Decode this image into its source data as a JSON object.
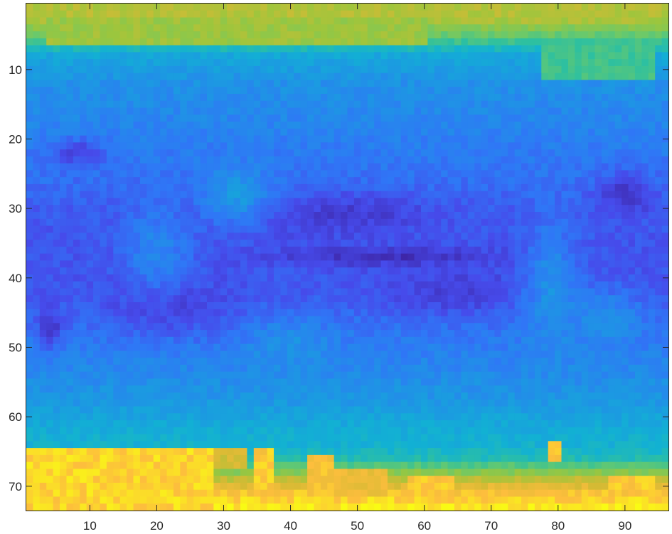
{
  "chart_data": {
    "type": "heatmap",
    "title": "",
    "xlabel": "",
    "ylabel": "",
    "xlim": [
      0.5,
      96.5
    ],
    "ylim": [
      0.5,
      73.5
    ],
    "y_reversed": true,
    "grid": false,
    "colormap": "parula",
    "x_ticks": [
      10,
      20,
      30,
      40,
      50,
      60,
      70,
      80,
      90
    ],
    "y_ticks": [
      10,
      20,
      30,
      40,
      50,
      60,
      70
    ],
    "grid_shape": {
      "rows": 73,
      "cols": 96
    },
    "value_scale": "normalized colormap position (0 = dark blue, 1 = yellow)",
    "base_profile": {
      "rows": [
        1,
        3,
        5,
        8,
        12,
        18,
        25,
        30,
        36,
        42,
        48,
        54,
        58,
        62,
        64,
        66,
        69,
        71,
        73
      ],
      "values": [
        0.78,
        0.74,
        0.62,
        0.38,
        0.3,
        0.26,
        0.21,
        0.16,
        0.14,
        0.15,
        0.22,
        0.28,
        0.33,
        0.4,
        0.42,
        0.48,
        0.78,
        0.92,
        0.98
      ]
    },
    "features": [
      {
        "kind": "box",
        "rows": [
          1,
          2
        ],
        "cols": [
          1,
          96
        ],
        "value": 0.76
      },
      {
        "kind": "box",
        "rows": [
          3,
          6
        ],
        "cols": [
          4,
          60
        ],
        "value": 0.72
      },
      {
        "kind": "box",
        "rows": [
          6,
          11
        ],
        "cols": [
          78,
          94
        ],
        "value": 0.55
      },
      {
        "kind": "blob",
        "row": 31,
        "col": 48,
        "rr": 3,
        "rc": 12,
        "value": 0.07
      },
      {
        "kind": "blob",
        "row": 37,
        "col": 55,
        "rr": 1.2,
        "rc": 16,
        "value": 0.03
      },
      {
        "kind": "blob",
        "row": 42,
        "col": 65,
        "rr": 3,
        "rc": 10,
        "value": 0.08
      },
      {
        "kind": "blob",
        "row": 44,
        "col": 22,
        "rr": 4,
        "rc": 10,
        "value": 0.09
      },
      {
        "kind": "blob",
        "row": 28,
        "col": 90,
        "rr": 3,
        "rc": 4,
        "value": 0.05
      },
      {
        "kind": "blob",
        "row": 47,
        "col": 4,
        "rr": 3,
        "rc": 2,
        "value": 0.06
      },
      {
        "kind": "blob",
        "row": 22,
        "col": 8,
        "rr": 2,
        "rc": 4,
        "value": 0.1
      },
      {
        "kind": "blob",
        "row": 36,
        "col": 20,
        "rr": 6,
        "rc": 5,
        "value": 0.27
      },
      {
        "kind": "blob",
        "row": 28,
        "col": 32,
        "rr": 4,
        "rc": 5,
        "value": 0.33
      },
      {
        "kind": "blob",
        "row": 50,
        "col": 40,
        "rr": 4,
        "rc": 6,
        "value": 0.3
      },
      {
        "kind": "blob",
        "row": 42,
        "col": 79,
        "rr": 10,
        "rc": 4,
        "value": 0.3
      },
      {
        "kind": "blob",
        "row": 46,
        "col": 87,
        "rr": 4,
        "rc": 5,
        "value": 0.3
      },
      {
        "kind": "box",
        "rows": [
          65,
          73
        ],
        "cols": [
          1,
          28
        ],
        "value": 0.95
      },
      {
        "kind": "box",
        "rows": [
          65,
          67
        ],
        "cols": [
          29,
          33
        ],
        "value": 0.82
      },
      {
        "kind": "box",
        "rows": [
          65,
          70
        ],
        "cols": [
          35,
          37
        ],
        "value": 0.93
      },
      {
        "kind": "box",
        "rows": [
          66,
          70
        ],
        "cols": [
          43,
          46
        ],
        "value": 0.91
      },
      {
        "kind": "box",
        "rows": [
          68,
          71
        ],
        "cols": [
          47,
          54
        ],
        "value": 0.88
      },
      {
        "kind": "box",
        "rows": [
          64,
          66
        ],
        "cols": [
          79,
          80
        ],
        "value": 0.92
      },
      {
        "kind": "box",
        "rows": [
          69,
          70
        ],
        "cols": [
          58,
          64
        ],
        "value": 0.93
      },
      {
        "kind": "box",
        "rows": [
          69,
          70
        ],
        "cols": [
          88,
          94
        ],
        "value": 0.93
      }
    ]
  }
}
